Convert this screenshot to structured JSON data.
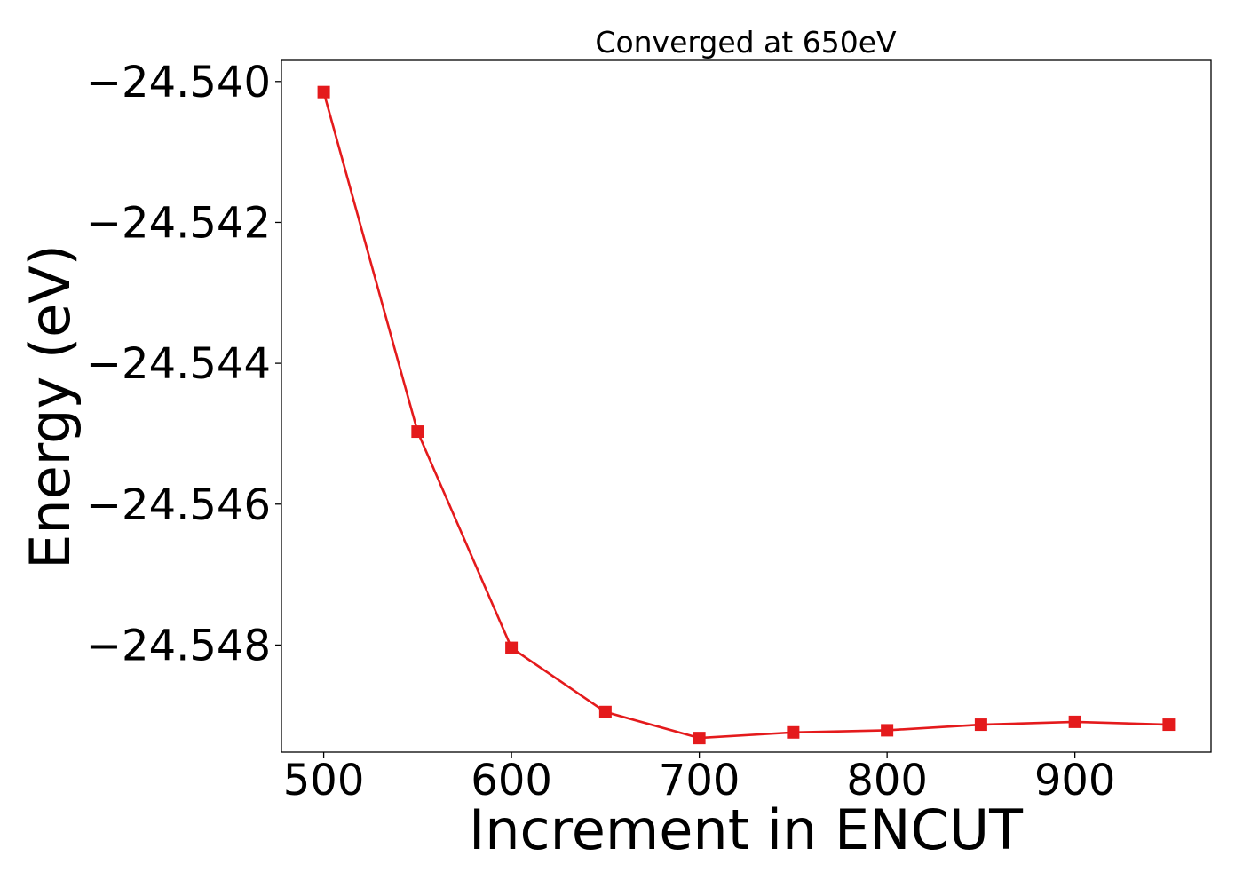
{
  "chart_data": {
    "type": "line",
    "title": "Converged at 650eV",
    "xlabel": "Increment in ENCUT",
    "ylabel": "Energy (eV)",
    "x": [
      500,
      550,
      600,
      650,
      700,
      750,
      800,
      850,
      900,
      950
    ],
    "series": [
      {
        "values": [
          -24.54015,
          -24.54497,
          -24.54804,
          -24.54895,
          -24.54932,
          -24.54924,
          -24.54921,
          -24.54913,
          -24.54909,
          -24.54913
        ],
        "color": "#e41a1c",
        "marker": "square"
      }
    ],
    "xlim": [
      477.5,
      972.5
    ],
    "ylim": [
      -24.54952,
      -24.5397
    ],
    "xticks": [
      500,
      600,
      700,
      800,
      900
    ],
    "xtick_labels": [
      "500",
      "600",
      "700",
      "800",
      "900"
    ],
    "yticks": [
      -24.54,
      -24.542,
      -24.544,
      -24.546,
      -24.548
    ],
    "ytick_labels": [
      "−24.540",
      "−24.542",
      "−24.544",
      "−24.546",
      "−24.548"
    ],
    "grid": false,
    "legend": false
  }
}
